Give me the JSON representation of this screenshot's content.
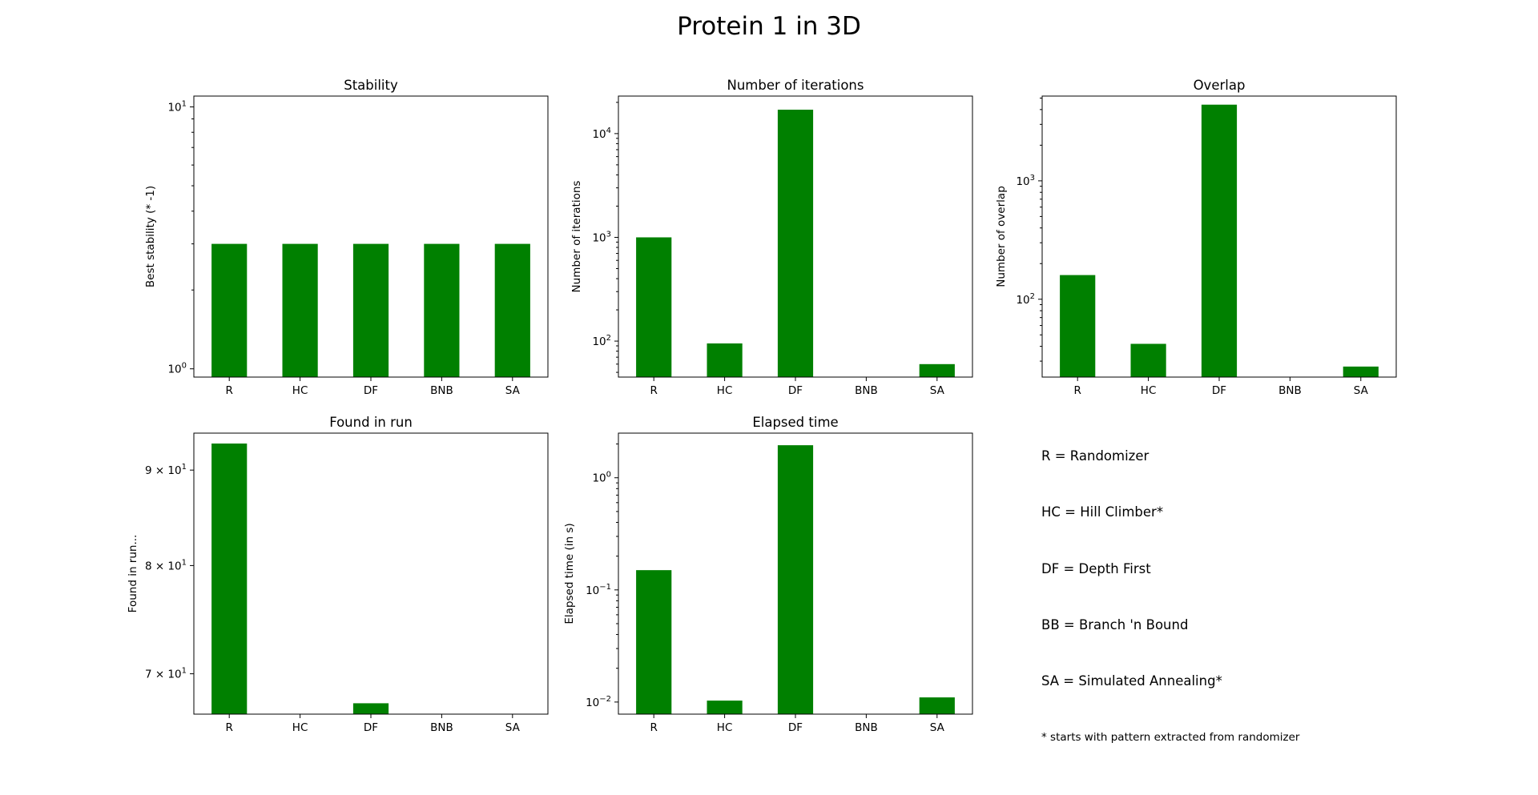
{
  "figure": {
    "title": "Protein 1 in 3D",
    "bar_color": "#008000"
  },
  "chart_data": [
    {
      "type": "bar",
      "title": "Stability",
      "ylabel": "Best stability (* -1)",
      "yscale": "log",
      "ylim": [
        0.93,
        11.0
      ],
      "categories": [
        "R",
        "HC",
        "DF",
        "BNB",
        "SA"
      ],
      "values": [
        3,
        3,
        3,
        3,
        3
      ],
      "yticks": [
        {
          "value": 1,
          "base": "10",
          "exp": "0"
        },
        {
          "value": 10,
          "base": "10",
          "exp": "1"
        }
      ],
      "minor_ticks": [
        2,
        3,
        4,
        5,
        6,
        7,
        8,
        9
      ]
    },
    {
      "type": "bar",
      "title": "Number of iterations",
      "ylabel": "Number of iterations",
      "yscale": "log",
      "ylim": [
        45,
        23000
      ],
      "categories": [
        "R",
        "HC",
        "DF",
        "BNB",
        "SA"
      ],
      "values": [
        1000,
        95,
        17000,
        null,
        60
      ],
      "yticks": [
        {
          "value": 100,
          "base": "10",
          "exp": "2"
        },
        {
          "value": 1000,
          "base": "10",
          "exp": "3"
        },
        {
          "value": 10000,
          "base": "10",
          "exp": "4"
        }
      ],
      "minor_ticks": [
        50,
        60,
        70,
        80,
        90,
        200,
        300,
        400,
        500,
        600,
        700,
        800,
        900,
        2000,
        3000,
        4000,
        5000,
        6000,
        7000,
        8000,
        9000,
        20000
      ]
    },
    {
      "type": "bar",
      "title": "Overlap",
      "ylabel": "Number  of overlap",
      "yscale": "log",
      "ylim": [
        22,
        5200
      ],
      "categories": [
        "R",
        "HC",
        "DF",
        "BNB",
        "SA"
      ],
      "values": [
        160,
        42,
        4400,
        null,
        27
      ],
      "yticks": [
        {
          "value": 100,
          "base": "10",
          "exp": "2"
        },
        {
          "value": 1000,
          "base": "10",
          "exp": "3"
        }
      ],
      "minor_ticks": [
        30,
        40,
        50,
        60,
        70,
        80,
        90,
        200,
        300,
        400,
        500,
        600,
        700,
        800,
        900,
        2000,
        3000,
        4000,
        5000
      ]
    },
    {
      "type": "bar",
      "title": "Found in run",
      "ylabel": "Found in run...",
      "yscale": "log",
      "ylim": [
        66.6,
        94.2
      ],
      "categories": [
        "R",
        "HC",
        "DF",
        "BNB",
        "SA"
      ],
      "values": [
        93,
        null,
        67.5,
        null,
        null
      ],
      "yticks": [
        {
          "value": 70,
          "base": "7 × 10",
          "exp": "1"
        },
        {
          "value": 80,
          "base": "8 × 10",
          "exp": "1"
        },
        {
          "value": 90,
          "base": "9 × 10",
          "exp": "1"
        }
      ],
      "minor_ticks": []
    },
    {
      "type": "bar",
      "title": "Elapsed time",
      "ylabel": "Elapsed time (in s)",
      "yscale": "log",
      "ylim": [
        0.0078,
        2.5
      ],
      "categories": [
        "R",
        "HC",
        "DF",
        "BNB",
        "SA"
      ],
      "values": [
        0.15,
        0.0103,
        1.95,
        null,
        0.011
      ],
      "yticks": [
        {
          "value": 0.01,
          "base": "10",
          "exp": "−2"
        },
        {
          "value": 0.1,
          "base": "10",
          "exp": "−1"
        },
        {
          "value": 1,
          "base": "10",
          "exp": "0"
        }
      ],
      "minor_ticks": [
        0.02,
        0.03,
        0.04,
        0.05,
        0.06,
        0.07,
        0.08,
        0.09,
        0.2,
        0.3,
        0.4,
        0.5,
        0.6,
        0.7,
        0.8,
        0.9,
        2
      ]
    }
  ],
  "legend": {
    "lines": [
      "R = Randomizer",
      "HC = Hill Climber*",
      "DF = Depth First",
      "BB = Branch 'n Bound",
      "SA = Simulated Annealing*"
    ],
    "note": "* starts with pattern extracted from randomizer"
  }
}
